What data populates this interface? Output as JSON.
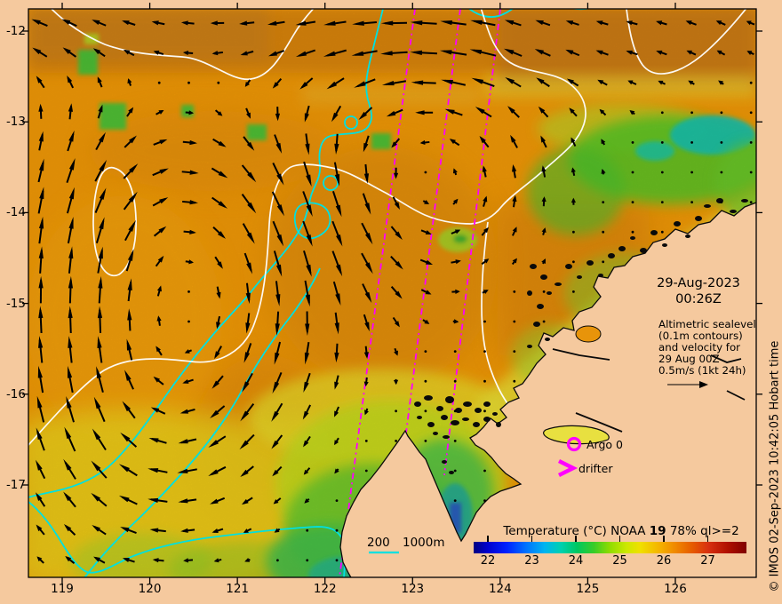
{
  "figure": {
    "datetime_line1": "29-Aug-2023",
    "datetime_line2": "00:26Z",
    "annotation_lines": [
      "Altimetric sealevel",
      "(0.1m contours)",
      "and velocity for",
      "29 Aug 00Z",
      "0.5m/s (1kt 24h)"
    ],
    "argo_label": "Argo 0",
    "drifter_label": "drifter",
    "depth_labels": [
      "200",
      "1000m"
    ],
    "credit": "© IMOS 02-Sep-2023 10:42:05 Hobart time"
  },
  "axes": {
    "x_tick_labels": [
      "119",
      "120",
      "121",
      "122",
      "123",
      "124",
      "125",
      "126"
    ],
    "y_tick_labels": [
      "-12",
      "-13",
      "-14",
      "-15",
      "-16",
      "-17"
    ]
  },
  "colorbar": {
    "title_prefix": "Temperature (°C) NOAA ",
    "title_sat": "19",
    "title_suffix": " 78% ql>=2",
    "tick_labels": [
      "22",
      "23",
      "24",
      "25",
      "26",
      "27"
    ]
  },
  "colors": {
    "background": "#F5C99E",
    "land": "#F5C99E",
    "ocean_base": "#F49B07",
    "track_magenta": "#FF00FF",
    "bathymetry_cyan": "#00E0E0",
    "sealevel_contour_white": "#FFFFFF",
    "arrow_black": "#000000"
  }
}
